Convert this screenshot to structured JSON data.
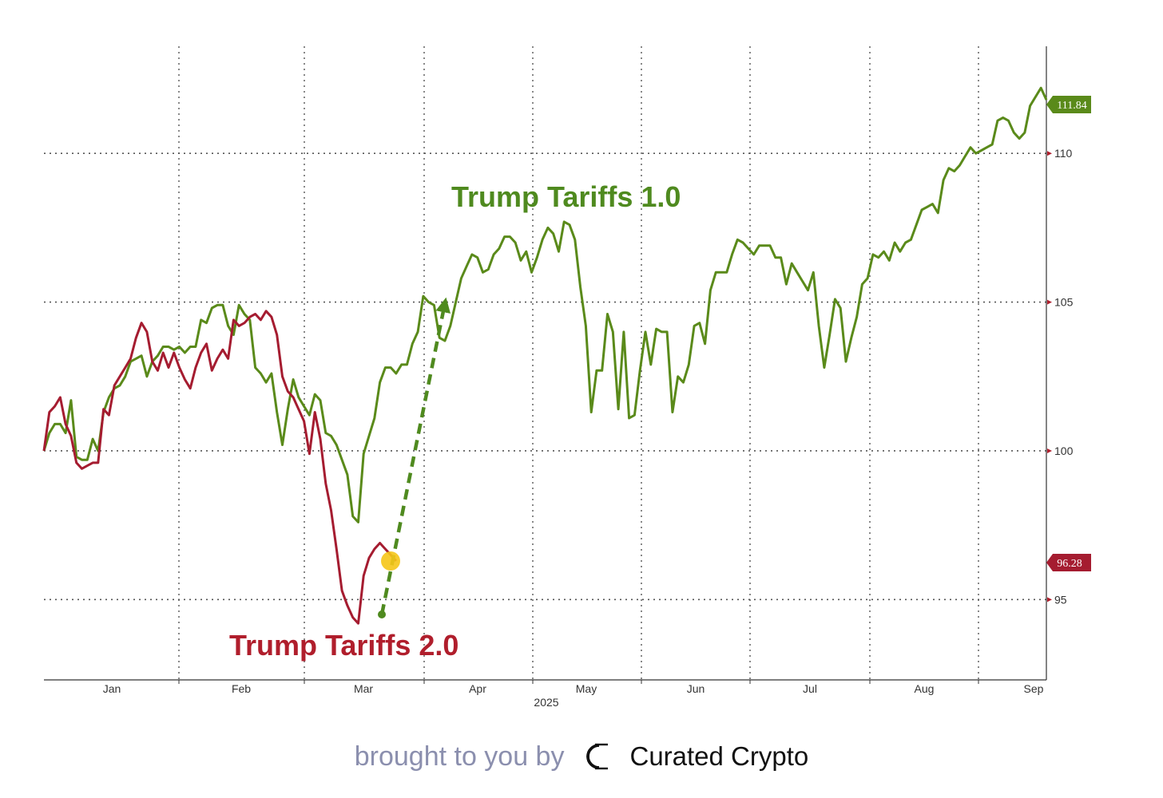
{
  "chart_data": {
    "type": "line",
    "xlabel": "2025",
    "x_ticks": [
      "Jan",
      "Feb",
      "Mar",
      "Apr",
      "May",
      "Jun",
      "Jul",
      "Aug",
      "Sep"
    ],
    "y_ticks": [
      95,
      100,
      105,
      110
    ],
    "ylim": [
      92.3,
      113.6
    ],
    "grid": true,
    "last_value_labels": [
      "111.84",
      "96.28"
    ],
    "annotations": [
      "Trump Tariffs 1.0",
      "Trump Tariffs 2.0"
    ],
    "colors": {
      "series_1": "#5a8a1a",
      "series_2": "#a51c30",
      "arrow": "#4f8a1f",
      "marker": "#f5c518"
    },
    "series": [
      {
        "values": [
          100.0,
          100.6,
          100.9,
          100.9,
          100.6,
          101.7,
          99.8,
          99.7,
          99.7,
          100.4,
          100.0,
          101.3,
          101.8,
          102.1,
          102.2,
          102.5,
          103.0,
          103.1,
          103.2,
          102.5,
          103.0,
          103.2,
          103.5,
          103.5,
          103.4,
          103.5,
          103.3,
          103.5,
          103.5,
          104.4,
          104.3,
          104.8,
          104.9,
          104.9,
          104.2,
          103.9,
          104.9,
          104.6,
          104.4,
          102.8,
          102.6,
          102.3,
          102.6,
          101.3,
          100.2,
          101.4,
          102.4,
          101.8,
          101.5,
          101.2,
          101.9,
          101.7,
          100.6,
          100.5,
          100.2,
          99.7,
          99.2,
          97.8,
          97.6,
          99.9,
          100.5,
          101.1,
          102.3,
          102.8,
          102.8,
          102.6,
          102.9,
          102.9,
          103.6,
          104.0,
          105.2,
          105.0,
          104.9,
          103.8,
          103.7,
          104.2,
          105.0,
          105.8,
          106.2,
          106.6,
          106.5,
          106.0,
          106.1,
          106.6,
          106.8,
          107.2,
          107.2,
          107.0,
          106.4,
          106.7,
          106.0,
          106.5,
          107.1,
          107.5,
          107.3,
          106.7,
          107.7,
          107.6,
          107.1,
          105.5,
          104.2,
          101.3,
          102.7,
          102.7,
          104.6,
          104.0,
          101.4,
          104.0,
          101.1,
          101.2,
          102.7,
          104.0,
          102.9,
          104.1,
          104.0,
          104.0,
          101.3,
          102.5,
          102.3,
          102.9,
          104.2,
          104.3,
          103.6,
          105.4,
          106.0,
          106.0,
          106.0,
          106.6,
          107.1,
          107.0,
          106.8,
          106.6,
          106.9,
          106.9,
          106.9,
          106.5,
          106.5,
          105.6,
          106.3,
          106.0,
          105.7,
          105.4,
          106.0,
          104.2,
          102.8,
          103.9,
          105.1,
          104.8,
          103.0,
          103.8,
          104.5,
          105.6,
          105.8,
          106.6,
          106.5,
          106.7,
          106.4,
          107.0,
          106.7,
          107.0,
          107.1,
          107.6,
          108.1,
          108.2,
          108.3,
          108.0,
          109.1,
          109.5,
          109.4,
          109.6,
          109.9,
          110.2,
          110.0,
          110.1,
          110.2,
          110.3,
          111.1,
          111.2,
          111.1,
          110.7,
          110.5,
          110.7,
          111.6,
          111.9,
          112.2,
          111.8
        ]
      },
      {
        "values": [
          100.0,
          101.3,
          101.5,
          101.8,
          100.9,
          100.5,
          99.6,
          99.4,
          99.5,
          99.6,
          99.6,
          101.4,
          101.2,
          102.2,
          102.5,
          102.8,
          103.1,
          103.8,
          104.3,
          104.0,
          103.0,
          102.7,
          103.3,
          102.8,
          103.3,
          102.8,
          102.4,
          102.1,
          102.8,
          103.3,
          103.6,
          102.7,
          103.1,
          103.4,
          103.1,
          104.4,
          104.2,
          104.3,
          104.5,
          104.6,
          104.4,
          104.7,
          104.5,
          103.9,
          102.5,
          102.0,
          101.8,
          101.4,
          101.0,
          99.9,
          101.3,
          100.4,
          98.9,
          98.0,
          96.7,
          95.3,
          94.8,
          94.4,
          94.2,
          95.8,
          96.4,
          96.7,
          96.9,
          96.7,
          96.5,
          96.3
        ]
      }
    ]
  },
  "footer": {
    "brought_by": "brought to you by",
    "brand": "Curated Crypto"
  }
}
